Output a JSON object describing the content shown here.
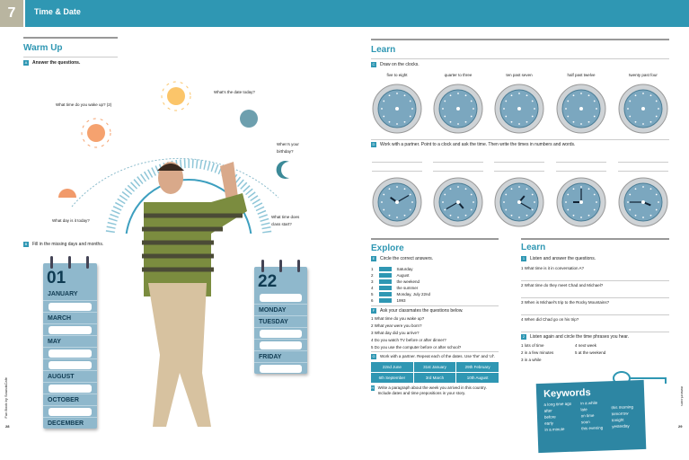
{
  "header": {
    "chapter_number": "7",
    "chapter_title": "Time & Date"
  },
  "left_page": {
    "section_title": "Warm Up",
    "task_a": {
      "letter": "A",
      "text": "Answer the questions."
    },
    "questions": [
      {
        "n": "1",
        "text": "What day is it today?"
      },
      {
        "n": "2",
        "text": "What time do you wake up?"
      },
      {
        "n": "3",
        "text": "What's the date today?"
      },
      {
        "n": "4",
        "text": "When's your birthday?"
      },
      {
        "n": "5",
        "text": "What time does class start?"
      }
    ],
    "task_b": {
      "letter": "B",
      "text": "Fill in the missing days and months."
    },
    "calendar_months": {
      "day": "01",
      "first": "JANUARY",
      "items": [
        "",
        "MARCH",
        "",
        "MAY",
        "",
        "",
        "AUGUST",
        "",
        "OCTOBER",
        "",
        "DECEMBER"
      ]
    },
    "calendar_days": {
      "day": "22",
      "items": [
        "",
        "MONDAY",
        "TUESDAY",
        "",
        "",
        "FRIDAY",
        ""
      ]
    },
    "side_text": "Fun Book by SoundsCafe",
    "page_number": "28"
  },
  "right_page": {
    "learn1": {
      "title": "Learn",
      "task_c": {
        "letter": "C",
        "text": "Draw on the clocks."
      },
      "clock_labels": [
        "five to eight",
        "quarter to three",
        "ten past seven",
        "half past twelve",
        "twenty past four"
      ],
      "task_d": {
        "letter": "D",
        "text": "Work with a partner. Point to a clock and ask the time. Then write the times in numbers and words."
      }
    },
    "explore": {
      "title": "Explore",
      "task_e": {
        "letter": "E",
        "text": "Circle the correct answers."
      },
      "answers": [
        {
          "n": "1",
          "text": "Saturday"
        },
        {
          "n": "2",
          "text": "August"
        },
        {
          "n": "3",
          "text": "the weekend"
        },
        {
          "n": "4",
          "text": "the summer"
        },
        {
          "n": "5",
          "text": "Monday, July 22nd"
        },
        {
          "n": "6",
          "text": "1993"
        }
      ],
      "task_f": {
        "letter": "F",
        "text": "Ask your classmates the questions below."
      },
      "questions": [
        "1 What time do you wake up?",
        "2 What year were you born?",
        "3 What day did you arrive?",
        "4 Do you watch TV before or after dinner?",
        "5 Do you use the computer before or after school?"
      ],
      "task_g": {
        "letter": "G",
        "text": "Work with a partner. Repeat each of the dates. Use 'the' and 'of'."
      },
      "dates": [
        "22nd June",
        "31st January",
        "29th February",
        "6th September",
        "3rd March",
        "10th August"
      ],
      "task_h": {
        "letter": "H",
        "text": "Write a paragraph about the week you arrived in this country. Include dates and time prepositions in your story."
      }
    },
    "learn2": {
      "title": "Learn",
      "task_1": {
        "letter": "1",
        "text": "Listen and answer the questions."
      },
      "questions": [
        "1 What time is it in conversation A?",
        "2 What time do they meet Chad and Michael?",
        "3 When is Michael's trip to the Rocky Mountains?",
        "4 When did Chad go on his trip?"
      ],
      "task_2": {
        "letter": "2",
        "text": "Listen again and circle the time phrases you hear."
      },
      "phrases": [
        "1 lots of time",
        "2 in a few minutes",
        "3 in a while",
        "4 next week",
        "5 at the weekend"
      ]
    },
    "keywords": {
      "title": "Keywords",
      "col1": [
        "a long time ago",
        "after",
        "before",
        "early",
        "in a minute"
      ],
      "col2": [
        "in a while",
        "late",
        "on time",
        "soon",
        "this evening"
      ],
      "col3": [
        "this morning",
        "tomorrow",
        "tonight",
        "yesterday"
      ]
    },
    "side_text": "www.ef.com",
    "page_number": "29"
  },
  "colors": {
    "accent": "#2f97b3",
    "chapter_box": "#b9b5a0",
    "calendar": "#8fb8cc"
  }
}
